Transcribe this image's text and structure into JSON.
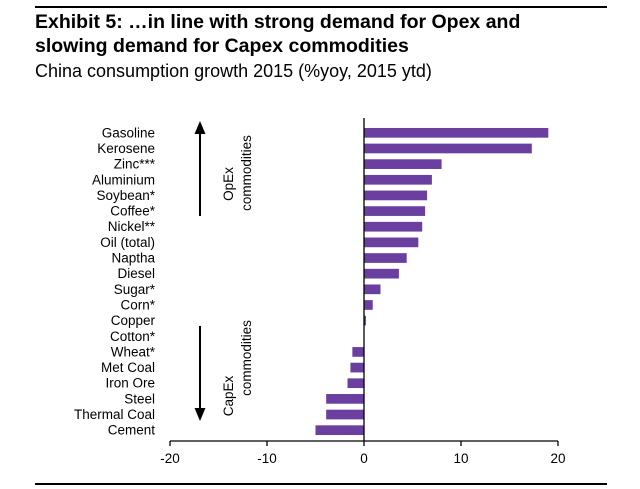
{
  "header": {
    "title_line1": "Exhibit 5: …in line with strong demand for Opex and",
    "title_line2": "slowing demand for Capex commodities",
    "subtitle": "China consumption growth 2015 (%yoy, 2015 ytd)"
  },
  "annotations": {
    "opex": [
      "OpEx",
      "commodities"
    ],
    "capex": [
      "CapEx",
      "commodities"
    ]
  },
  "colors": {
    "bar": "#6b3fa0",
    "axis": "#000000"
  },
  "chart_data": {
    "type": "bar",
    "orientation": "horizontal",
    "categories": [
      "Gasoline",
      "Kerosene",
      "Zinc***",
      "Aluminium",
      "Soybean*",
      "Coffee*",
      "Nickel**",
      "Oil (total)",
      "Naptha",
      "Diesel",
      "Sugar*",
      "Corn*",
      "Copper",
      "Cotton*",
      "Wheat*",
      "Met Coal",
      "Iron Ore",
      "Steel",
      "Thermal Coal",
      "Cement"
    ],
    "values": [
      19.0,
      17.3,
      8.0,
      7.0,
      6.5,
      6.3,
      6.0,
      5.6,
      4.4,
      3.6,
      1.7,
      0.9,
      0.2,
      0.0,
      -1.2,
      -1.4,
      -1.7,
      -3.9,
      -3.9,
      -5.0
    ],
    "xlim": [
      -20,
      20
    ],
    "xticks": [
      -20,
      -10,
      0,
      10,
      20
    ],
    "title": "China consumption growth 2015 (%yoy, 2015 ytd)",
    "xlabel": "",
    "ylabel": "",
    "grid": false,
    "legend": "none"
  }
}
